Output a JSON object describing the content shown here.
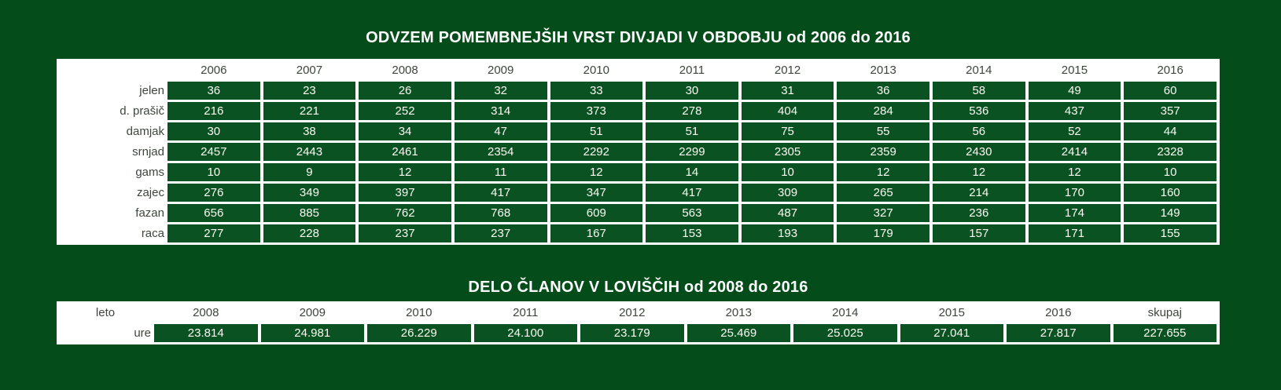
{
  "colors": {
    "background": "#054c1b",
    "cell_green": "#0b5222",
    "border_white": "#ffffff",
    "header_text": "#3d453d",
    "cell_text": "#fbfaf2",
    "title_text": "#ffffff"
  },
  "table1": {
    "title": "ODVZEM POMEMBNEJŠIH VRST DIVJADI V OBDOBJU od 2006 do 2016",
    "corner_label": "",
    "columns": [
      "2006",
      "2007",
      "2008",
      "2009",
      "2010",
      "2011",
      "2012",
      "2013",
      "2014",
      "2015",
      "2016"
    ],
    "rows": [
      {
        "label": "jelen",
        "values": [
          36,
          23,
          26,
          32,
          33,
          30,
          31,
          36,
          58,
          49,
          60
        ]
      },
      {
        "label": "d. prašič",
        "values": [
          216,
          221,
          252,
          314,
          373,
          278,
          404,
          284,
          536,
          437,
          357
        ]
      },
      {
        "label": "damjak",
        "values": [
          30,
          38,
          34,
          47,
          51,
          51,
          75,
          55,
          56,
          52,
          44
        ]
      },
      {
        "label": "srnjad",
        "values": [
          2457,
          2443,
          2461,
          2354,
          2292,
          2299,
          2305,
          2359,
          2430,
          2414,
          2328
        ]
      },
      {
        "label": "gams",
        "values": [
          10,
          9,
          12,
          11,
          12,
          14,
          10,
          12,
          12,
          12,
          10
        ]
      },
      {
        "label": "zajec",
        "values": [
          276,
          349,
          397,
          417,
          347,
          417,
          309,
          265,
          214,
          170,
          160
        ]
      },
      {
        "label": "fazan",
        "values": [
          656,
          885,
          762,
          768,
          609,
          563,
          487,
          327,
          236,
          174,
          149
        ]
      },
      {
        "label": "raca",
        "values": [
          277,
          228,
          237,
          237,
          167,
          153,
          193,
          179,
          157,
          171,
          155
        ]
      }
    ]
  },
  "table2": {
    "title": "DELO ČLANOV V LOVIŠČIH od 2008 do 2016",
    "corner_label": "leto",
    "columns": [
      "2008",
      "2009",
      "2010",
      "2011",
      "2012",
      "2013",
      "2014",
      "2015",
      "2016",
      "skupaj"
    ],
    "rows": [
      {
        "label": "ure",
        "values": [
          "23.814",
          "24.981",
          "26.229",
          "24.100",
          "23.179",
          "25.469",
          "25.025",
          "27.041",
          "27.817",
          "227.655"
        ]
      }
    ]
  }
}
